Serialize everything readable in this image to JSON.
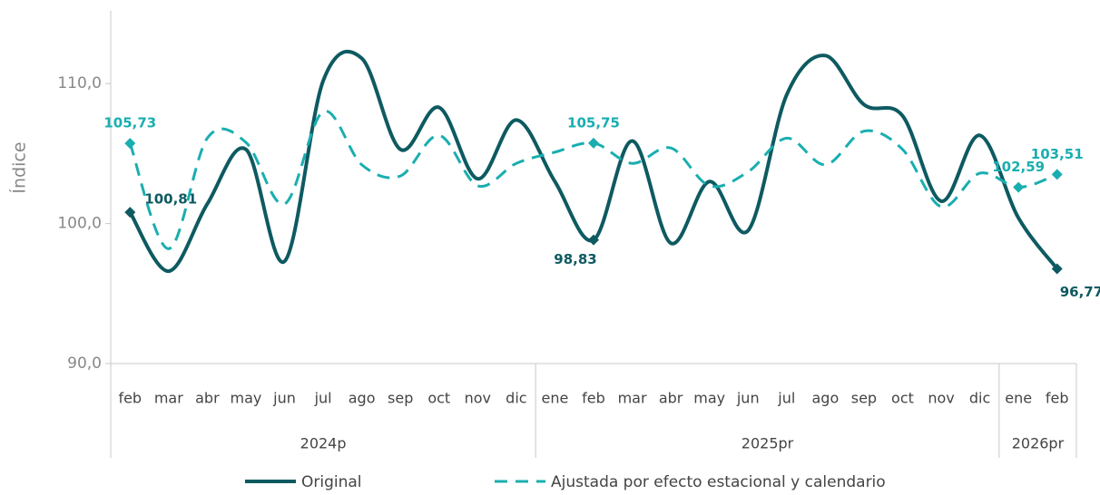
{
  "chart_data": {
    "type": "line",
    "y_label": "Índice",
    "categories": [
      "feb",
      "mar",
      "abr",
      "may",
      "jun",
      "jul",
      "ago",
      "sep",
      "oct",
      "nov",
      "dic",
      "ene",
      "feb",
      "mar",
      "abr",
      "may",
      "jun",
      "jul",
      "ago",
      "sep",
      "oct",
      "nov",
      "dic",
      "ene",
      "feb"
    ],
    "x_groups": [
      {
        "name": "2024p",
        "count": 11
      },
      {
        "name": "2025pr",
        "count": 12
      },
      {
        "name": "2026pr",
        "count": 2
      }
    ],
    "series": [
      {
        "name": "Original",
        "color": "#0e5a61",
        "dash": false,
        "values": [
          100.81,
          96.6,
          101.4,
          105.3,
          97.3,
          110.2,
          111.8,
          105.3,
          108.3,
          103.2,
          107.4,
          103.0,
          98.83,
          105.9,
          98.6,
          103.0,
          99.5,
          109.2,
          112.0,
          108.5,
          107.7,
          101.6,
          106.3,
          100.4,
          96.77
        ],
        "value_labels": [
          "100,81",
          null,
          null,
          null,
          null,
          null,
          null,
          null,
          null,
          null,
          null,
          null,
          "98,83",
          null,
          null,
          null,
          null,
          null,
          null,
          null,
          null,
          null,
          null,
          null,
          "96,77"
        ]
      },
      {
        "name": "Ajustada por efecto estacional y calendario",
        "color": "#1aaeb0",
        "dash": true,
        "values": [
          105.73,
          98.2,
          106.1,
          105.8,
          101.4,
          108.0,
          104.2,
          103.4,
          106.3,
          102.7,
          104.3,
          105.1,
          105.75,
          104.3,
          105.4,
          102.7,
          103.7,
          106.1,
          104.2,
          106.6,
          105.3,
          101.2,
          103.6,
          102.59,
          103.51
        ],
        "value_labels": [
          "105,73",
          null,
          null,
          null,
          null,
          null,
          null,
          null,
          null,
          null,
          null,
          null,
          "105,75",
          null,
          null,
          null,
          null,
          null,
          null,
          null,
          null,
          null,
          null,
          "102,59",
          "103,51"
        ]
      }
    ],
    "ylim": [
      90,
      115
    ],
    "yticks": [
      {
        "value": 90,
        "label": "90,0"
      },
      {
        "value": 100,
        "label": "100,0"
      },
      {
        "value": 110,
        "label": "110,0"
      }
    ],
    "grid": false,
    "legend": "bottom"
  }
}
